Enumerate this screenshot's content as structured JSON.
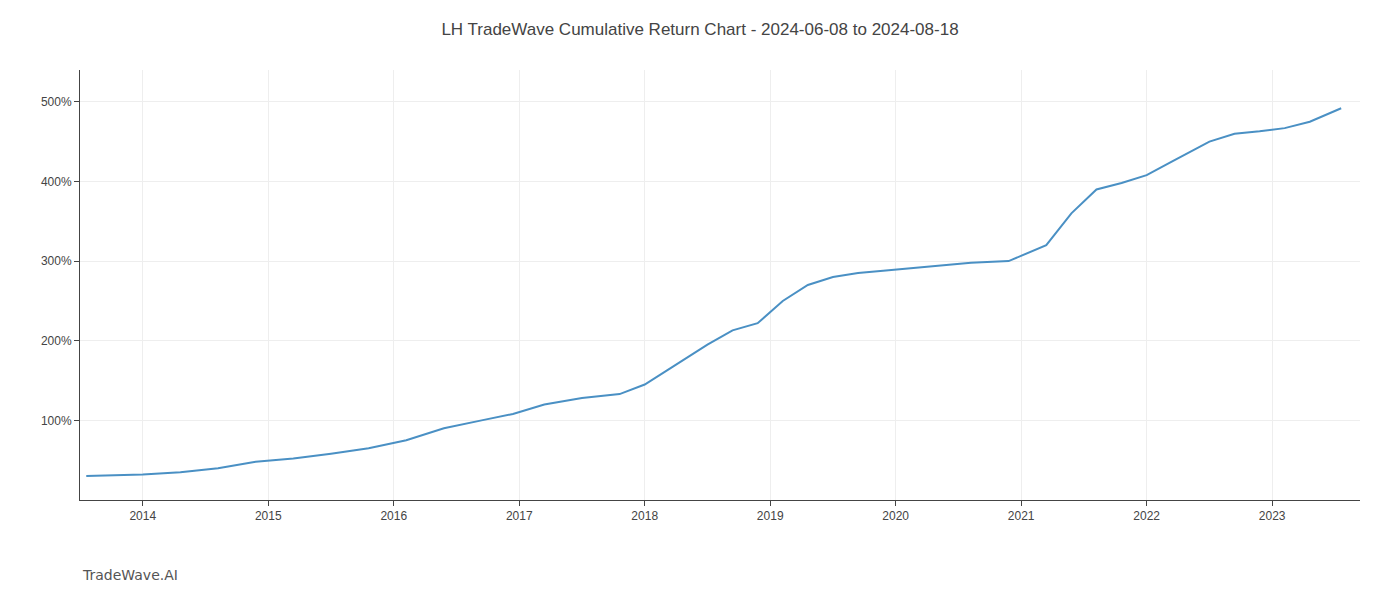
{
  "chart_data": {
    "type": "line",
    "title": "LH TradeWave Cumulative Return Chart - 2024-06-08 to 2024-08-18",
    "annotations": [
      "TradeWave.AI"
    ],
    "x": [
      2013.55,
      2014.0,
      2014.3,
      2014.6,
      2014.9,
      2015.2,
      2015.5,
      2015.8,
      2016.1,
      2016.4,
      2016.7,
      2016.95,
      2017.2,
      2017.5,
      2017.8,
      2018.0,
      2018.2,
      2018.5,
      2018.7,
      2018.9,
      2019.1,
      2019.3,
      2019.5,
      2019.7,
      2019.9,
      2020.1,
      2020.3,
      2020.6,
      2020.9,
      2021.2,
      2021.4,
      2021.6,
      2021.8,
      2022.0,
      2022.2,
      2022.5,
      2022.7,
      2022.9,
      2023.1,
      2023.3,
      2023.55
    ],
    "values": [
      30,
      32,
      35,
      40,
      48,
      52,
      58,
      65,
      75,
      90,
      100,
      108,
      120,
      128,
      133,
      145,
      165,
      195,
      213,
      222,
      250,
      270,
      280,
      285,
      288,
      291,
      294,
      298,
      300,
      320,
      360,
      390,
      398,
      408,
      425,
      450,
      460,
      463,
      467,
      475,
      492
    ],
    "color": "#4a90c4",
    "xlim": [
      2013.5,
      2023.7
    ],
    "xticks": [
      2014,
      2015,
      2016,
      2017,
      2018,
      2019,
      2020,
      2021,
      2022,
      2023
    ],
    "ylim": [
      0,
      540
    ],
    "yticks": [
      {
        "value": 100,
        "label": "100%"
      },
      {
        "value": 200,
        "label": "200%"
      },
      {
        "value": 300,
        "label": "300%"
      },
      {
        "value": 400,
        "label": "400%"
      },
      {
        "value": 500,
        "label": "500%"
      }
    ],
    "grid": true
  }
}
